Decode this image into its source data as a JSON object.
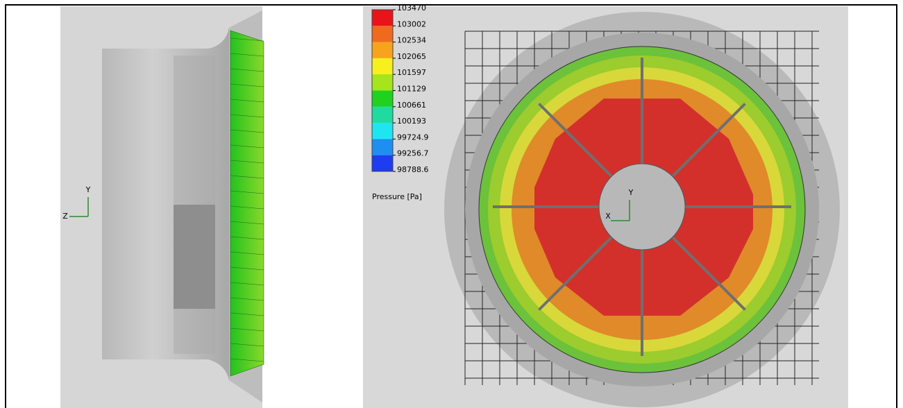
{
  "left_view": {
    "triad": {
      "vertical": "Y",
      "horizontal": "Z"
    }
  },
  "right_view": {
    "legend": {
      "labels": [
        "103470",
        "103002",
        "102534",
        "102065",
        "101597",
        "101129",
        "100661",
        "100193",
        "99724.9",
        "99256.7",
        "98788.6"
      ],
      "title": "Pressure [Pa]"
    },
    "triad": {
      "vertical": "Y",
      "horizontal": "X"
    }
  }
}
